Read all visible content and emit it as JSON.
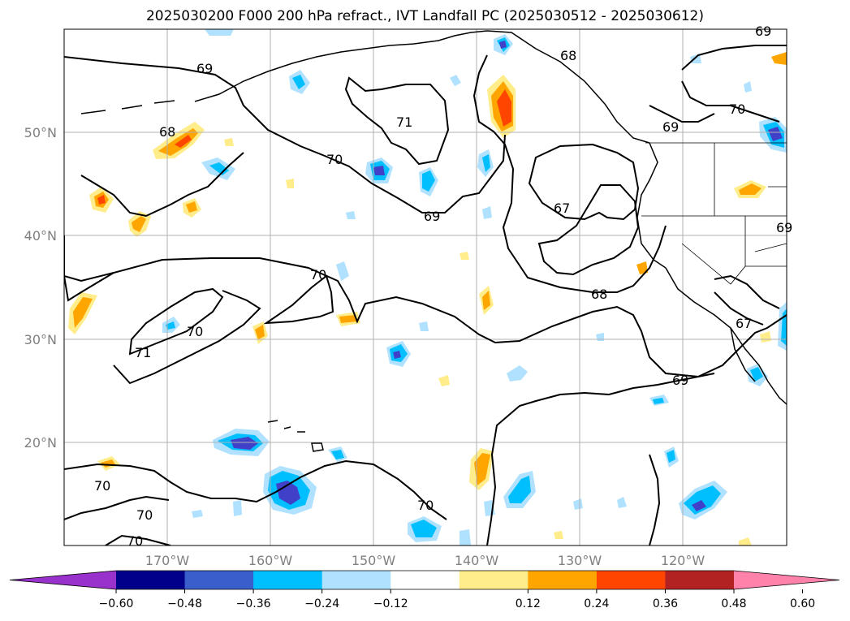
{
  "title": "2025030200 F000 200 hPa refract., IVT Landfall PC (2025030512 - 2025030612)",
  "lat_labels": [
    "50°N",
    "40°N",
    "30°N",
    "20°N"
  ],
  "lon_labels": [
    "170°W",
    "160°W",
    "150°W",
    "140°W",
    "130°W",
    "120°W"
  ],
  "contour_labels": [
    "69",
    "68",
    "71",
    "70",
    "69",
    "67",
    "68",
    "70",
    "71",
    "70",
    "69",
    "70",
    "70",
    "70",
    "70",
    "68",
    "69",
    "70",
    "69",
    "67",
    "69"
  ],
  "colorbar": {
    "ticks": [
      "−0.60",
      "−0.48",
      "−0.36",
      "−0.24",
      "−0.12",
      "0.12",
      "0.24",
      "0.36",
      "0.48",
      "0.60"
    ],
    "colors": [
      "#9932cc",
      "#00008b",
      "#3a5fcd",
      "#00bfff",
      "#b0e2ff",
      "#ffffff",
      "#ffec8b",
      "#ffa500",
      "#ff4500",
      "#b22222",
      "#ff82ab"
    ]
  },
  "fill_colors": {
    "light_blue": "#b0e2ff",
    "blue": "#00bfff",
    "mid_blue": "#3a5fcd",
    "deep_blue": "#4040c8",
    "light_yellow": "#ffec8b",
    "orange": "#ffa500",
    "red_orange": "#ff4500"
  }
}
